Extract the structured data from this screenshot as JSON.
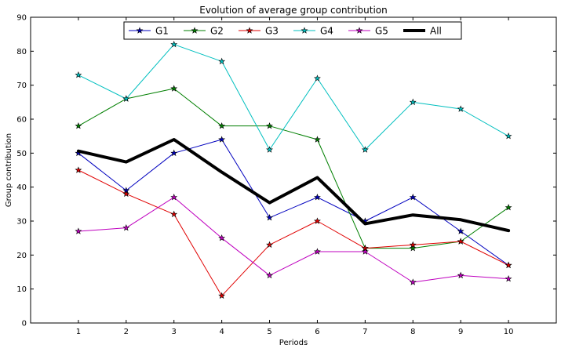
{
  "chart_data": {
    "type": "line",
    "title": "Evolution of average group contribution",
    "xlabel": "Periods",
    "ylabel": "Group contribution",
    "x": [
      1,
      2,
      3,
      4,
      5,
      6,
      7,
      8,
      9,
      10
    ],
    "xlim": [
      0,
      11
    ],
    "ylim": [
      0,
      90
    ],
    "yticks": [
      0,
      10,
      20,
      30,
      40,
      50,
      60,
      70,
      80,
      90
    ],
    "grid": false,
    "legend": "top-center",
    "series": [
      {
        "name": "G1",
        "color": "#0000bf",
        "marker": "star",
        "values": [
          50,
          39,
          50,
          54,
          31,
          37,
          30,
          37,
          27,
          17
        ]
      },
      {
        "name": "G2",
        "color": "#007f00",
        "marker": "star",
        "values": [
          58,
          66,
          69,
          58,
          58,
          54,
          22,
          22,
          24,
          34
        ]
      },
      {
        "name": "G3",
        "color": "#e00000",
        "marker": "star",
        "values": [
          45,
          38,
          32,
          8,
          23,
          30,
          22,
          23,
          24,
          17
        ]
      },
      {
        "name": "G4",
        "color": "#00bfbf",
        "marker": "star",
        "values": [
          73,
          66,
          82,
          77,
          51,
          72,
          51,
          65,
          63,
          55
        ]
      },
      {
        "name": "G5",
        "color": "#bf00bf",
        "marker": "star",
        "values": [
          27,
          28,
          37,
          25,
          14,
          21,
          21,
          12,
          14,
          13
        ]
      },
      {
        "name": "All",
        "color": "#000000",
        "marker": "none",
        "values": [
          50.6,
          47.4,
          54,
          44.4,
          35.4,
          42.8,
          29.2,
          31.8,
          30.4,
          27.2
        ]
      }
    ]
  }
}
